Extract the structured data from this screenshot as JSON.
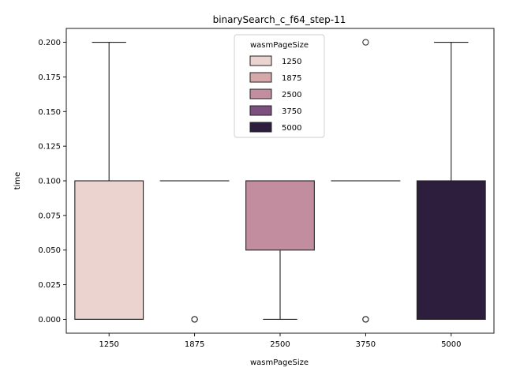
{
  "chart_data": {
    "type": "box",
    "title": "binarySearch_c_f64_step-11",
    "xlabel": "wasmPageSize",
    "ylabel": "time",
    "categories": [
      "1250",
      "1875",
      "2500",
      "3750",
      "5000"
    ],
    "ylim": [
      -0.01,
      0.21
    ],
    "yticks": [
      "0.000",
      "0.025",
      "0.050",
      "0.075",
      "0.100",
      "0.125",
      "0.150",
      "0.175",
      "0.200"
    ],
    "boxes": [
      {
        "category": "1250",
        "q1": 0.0,
        "median": 0.0,
        "q3": 0.1,
        "whisker_low": 0.0,
        "whisker_high": 0.2,
        "outliers": [],
        "color": "#ebd3cf"
      },
      {
        "category": "1875",
        "q1": 0.1,
        "median": 0.1,
        "q3": 0.1,
        "whisker_low": 0.1,
        "whisker_high": 0.1,
        "outliers": [
          0.0,
          0.0
        ],
        "color": "#d5a9a9"
      },
      {
        "category": "2500",
        "q1": 0.05,
        "median": 0.1,
        "q3": 0.1,
        "whisker_low": 0.0,
        "whisker_high": 0.1,
        "outliers": [],
        "color": "#c28d9f"
      },
      {
        "category": "3750",
        "q1": 0.1,
        "median": 0.1,
        "q3": 0.1,
        "whisker_low": 0.1,
        "whisker_high": 0.1,
        "outliers": [
          0.0,
          0.0,
          0.2
        ],
        "color": "#7d4e80"
      },
      {
        "category": "5000",
        "q1": 0.0,
        "median": 0.0,
        "q3": 0.1,
        "whisker_low": 0.0,
        "whisker_high": 0.2,
        "outliers": [],
        "color": "#2d1e3e"
      }
    ],
    "legend": {
      "title": "wasmPageSize",
      "position": "top-center",
      "entries": [
        {
          "label": "1250",
          "color": "#ebd3cf"
        },
        {
          "label": "1875",
          "color": "#d5a9a9"
        },
        {
          "label": "2500",
          "color": "#c28d9f"
        },
        {
          "label": "3750",
          "color": "#7d4e80"
        },
        {
          "label": "5000",
          "color": "#2d1e3e"
        }
      ]
    },
    "grid": false
  }
}
